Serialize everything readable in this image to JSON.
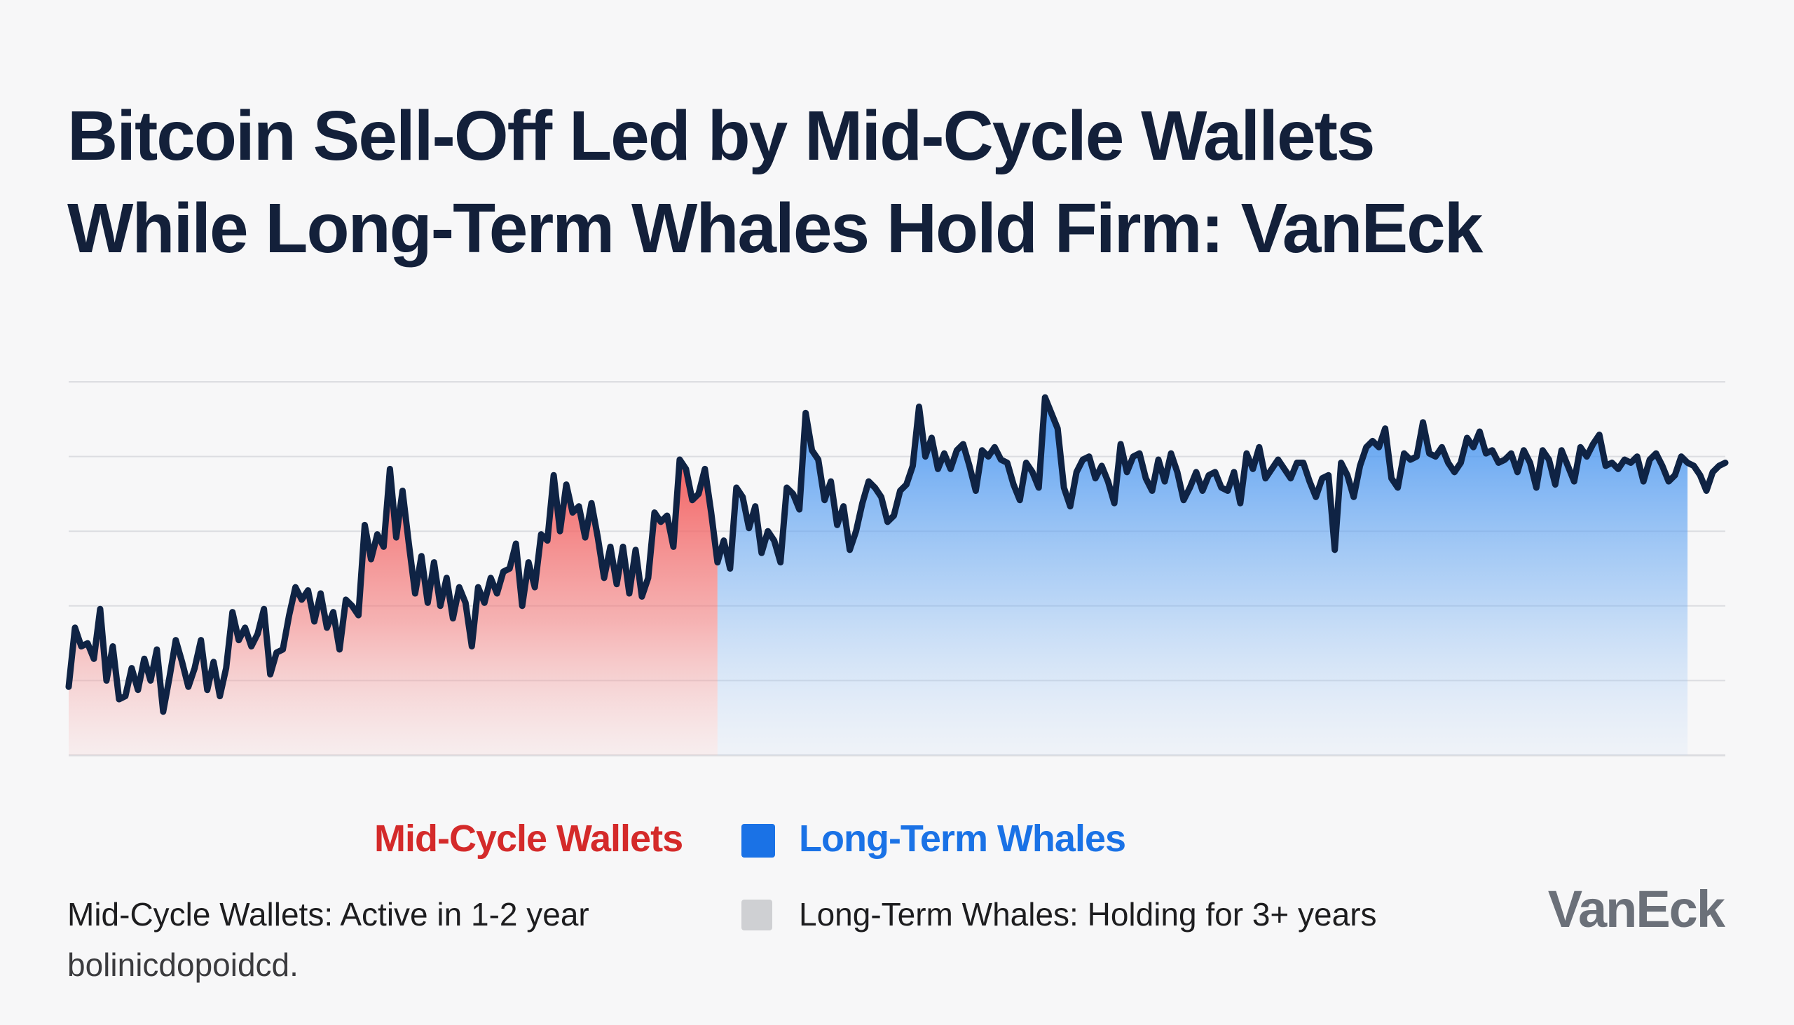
{
  "title_lines": [
    "Bitcoin Sell-Off Led by Mid-Cycle Wallets",
    "While Long-Term Whales Hold Firm: VanEck"
  ],
  "colors": {
    "title": "#13203a",
    "line": "#0f2344",
    "mid_cycle": "#d42a2a",
    "mid_cycle_fill": "#f25a5a",
    "long_term": "#1a72e6",
    "long_term_fill": "#3d8ff0",
    "note_swatch": "#cfd0d3",
    "brand": "#6b7079",
    "grid": "#dcdde1"
  },
  "legend": {
    "mid_cycle_label": "Mid-Cycle Wallets",
    "long_term_label": "Long-Term Whales"
  },
  "notes": {
    "mid_cycle_line1": "Mid-Cycle Wallets: Active in 1-2 year",
    "mid_cycle_line2": "bolinicdopoidcd.",
    "long_term": "Long-Term Whales: Holding for 3+ years"
  },
  "brand": "VanEck",
  "chart_data": {
    "type": "area",
    "title": "",
    "xlabel": "",
    "ylabel": "",
    "ylim": [
      0,
      6
    ],
    "grid": true,
    "legend_position": "bottom",
    "segments": [
      {
        "series": "Mid-Cycle Wallets",
        "x_range": [
          0,
          103
        ]
      },
      {
        "series": "Long-Term Whales",
        "x_range": [
          103,
          257
        ]
      }
    ],
    "values": [
      1.1,
      2.05,
      1.75,
      1.8,
      1.55,
      2.35,
      1.2,
      1.75,
      0.9,
      0.95,
      1.4,
      1.05,
      1.55,
      1.2,
      1.7,
      0.7,
      1.25,
      1.85,
      1.5,
      1.1,
      1.4,
      1.85,
      1.05,
      1.5,
      0.95,
      1.4,
      2.3,
      1.85,
      2.05,
      1.75,
      1.95,
      2.35,
      1.3,
      1.65,
      1.7,
      2.25,
      2.7,
      2.5,
      2.65,
      2.15,
      2.6,
      2.05,
      2.3,
      1.7,
      2.5,
      2.4,
      2.25,
      3.7,
      3.15,
      3.55,
      3.35,
      4.6,
      3.5,
      4.25,
      3.4,
      2.6,
      3.2,
      2.45,
      3.1,
      2.4,
      2.85,
      2.2,
      2.7,
      2.45,
      1.75,
      2.7,
      2.45,
      2.85,
      2.6,
      2.95,
      3.0,
      3.4,
      2.4,
      3.1,
      2.7,
      3.55,
      3.45,
      4.5,
      3.6,
      4.35,
      3.9,
      4.0,
      3.5,
      4.05,
      3.5,
      2.85,
      3.35,
      2.75,
      3.35,
      2.6,
      3.3,
      2.55,
      2.85,
      3.9,
      3.75,
      3.85,
      3.35,
      4.75,
      4.6,
      4.1,
      4.2,
      4.6,
      3.9,
      3.1,
      3.45,
      3.0,
      4.3,
      4.15,
      3.65,
      4.0,
      3.25,
      3.6,
      3.45,
      3.1,
      4.3,
      4.2,
      3.95,
      5.5,
      4.9,
      4.75,
      4.1,
      4.4,
      3.7,
      4.0,
      3.3,
      3.6,
      4.05,
      4.4,
      4.3,
      4.15,
      3.75,
      3.85,
      4.25,
      4.35,
      4.65,
      5.6,
      4.8,
      5.1,
      4.6,
      4.85,
      4.6,
      4.9,
      5.0,
      4.65,
      4.25,
      4.9,
      4.8,
      4.95,
      4.75,
      4.7,
      4.35,
      4.1,
      4.7,
      4.55,
      4.3,
      5.75,
      5.5,
      5.25,
      4.3,
      4.0,
      4.55,
      4.75,
      4.8,
      4.45,
      4.65,
      4.4,
      4.05,
      5.0,
      4.55,
      4.8,
      4.85,
      4.45,
      4.25,
      4.75,
      4.4,
      4.85,
      4.55,
      4.1,
      4.3,
      4.55,
      4.25,
      4.5,
      4.55,
      4.3,
      4.25,
      4.55,
      4.05,
      4.85,
      4.6,
      4.95,
      4.45,
      4.6,
      4.75,
      4.6,
      4.45,
      4.7,
      4.7,
      4.4,
      4.15,
      4.45,
      4.5,
      3.3,
      4.7,
      4.5,
      4.15,
      4.65,
      4.95,
      5.05,
      4.95,
      5.25,
      4.45,
      4.3,
      4.85,
      4.75,
      4.8,
      5.35,
      4.85,
      4.8,
      4.95,
      4.7,
      4.55,
      4.7,
      5.1,
      4.95,
      5.2,
      4.85,
      4.9,
      4.7,
      4.75,
      4.85,
      4.55,
      4.9,
      4.7,
      4.3,
      4.9,
      4.75,
      4.35,
      4.9,
      4.65,
      4.4,
      4.95,
      4.8,
      5.0,
      5.15,
      4.65,
      4.7,
      4.6,
      4.75,
      4.7,
      4.8,
      4.4,
      4.75,
      4.85,
      4.65,
      4.4,
      4.5,
      4.8,
      4.7,
      4.65,
      4.5,
      4.25,
      4.55,
      4.65,
      4.7
    ]
  }
}
